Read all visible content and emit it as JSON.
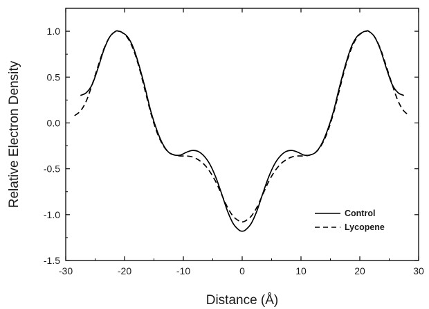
{
  "chart_data": {
    "type": "line",
    "title": "",
    "xlabel": "Distance (Å)",
    "ylabel": "Relative Electron Density",
    "xlim": [
      -30,
      30
    ],
    "ylim": [
      -1.5,
      1.25
    ],
    "x_ticks": [
      -30,
      -20,
      -10,
      0,
      10,
      20,
      30
    ],
    "x_tick_labels": [
      "-30",
      "-20",
      "-10",
      "0",
      "10",
      "20",
      "30"
    ],
    "y_ticks": [
      -1.5,
      -1.0,
      -0.5,
      0.0,
      0.5,
      1.0
    ],
    "y_tick_labels": [
      "-1.5",
      "-1.0",
      "-0.5",
      "0.0",
      "0.5",
      "1.0"
    ],
    "grid": false,
    "legend_position": "bottom-right",
    "series": [
      {
        "name": "Control",
        "style": "solid",
        "color": "#000000",
        "points": [
          [
            -27.5,
            0.3
          ],
          [
            -26.5,
            0.33
          ],
          [
            -25.5,
            0.42
          ],
          [
            -24.5,
            0.6
          ],
          [
            -23.5,
            0.8
          ],
          [
            -22.5,
            0.94
          ],
          [
            -21.5,
            1.0
          ],
          [
            -21,
            1.0
          ],
          [
            -20.5,
            0.99
          ],
          [
            -19.5,
            0.94
          ],
          [
            -18.5,
            0.82
          ],
          [
            -17.5,
            0.62
          ],
          [
            -16.5,
            0.38
          ],
          [
            -15.5,
            0.12
          ],
          [
            -14.5,
            -0.08
          ],
          [
            -13.5,
            -0.23
          ],
          [
            -12.5,
            -0.32
          ],
          [
            -11.5,
            -0.35
          ],
          [
            -10.5,
            -0.35
          ],
          [
            -9.5,
            -0.32
          ],
          [
            -8.5,
            -0.3
          ],
          [
            -7.5,
            -0.31
          ],
          [
            -6.5,
            -0.36
          ],
          [
            -5.5,
            -0.45
          ],
          [
            -4.5,
            -0.59
          ],
          [
            -3.5,
            -0.77
          ],
          [
            -2.5,
            -0.96
          ],
          [
            -1.5,
            -1.1
          ],
          [
            -0.5,
            -1.17
          ],
          [
            0,
            -1.18
          ],
          [
            0.5,
            -1.17
          ],
          [
            1.5,
            -1.1
          ],
          [
            2.5,
            -0.96
          ],
          [
            3.5,
            -0.77
          ],
          [
            4.5,
            -0.59
          ],
          [
            5.5,
            -0.45
          ],
          [
            6.5,
            -0.36
          ],
          [
            7.5,
            -0.31
          ],
          [
            8.5,
            -0.3
          ],
          [
            9.5,
            -0.32
          ],
          [
            10.5,
            -0.35
          ],
          [
            11.5,
            -0.35
          ],
          [
            12.5,
            -0.32
          ],
          [
            13.5,
            -0.23
          ],
          [
            14.5,
            -0.08
          ],
          [
            15.5,
            0.12
          ],
          [
            16.5,
            0.38
          ],
          [
            17.5,
            0.62
          ],
          [
            18.5,
            0.82
          ],
          [
            19.5,
            0.94
          ],
          [
            20.5,
            0.99
          ],
          [
            21,
            1.0
          ],
          [
            21.5,
            1.0
          ],
          [
            22.5,
            0.94
          ],
          [
            23.5,
            0.8
          ],
          [
            24.5,
            0.6
          ],
          [
            25.5,
            0.42
          ],
          [
            26.5,
            0.33
          ],
          [
            27.5,
            0.3
          ]
        ]
      },
      {
        "name": "Lycopene",
        "style": "dashed",
        "color": "#000000",
        "points": [
          [
            -28.5,
            0.08
          ],
          [
            -27.5,
            0.13
          ],
          [
            -26.5,
            0.24
          ],
          [
            -25.5,
            0.42
          ],
          [
            -24.5,
            0.62
          ],
          [
            -23.5,
            0.81
          ],
          [
            -22.5,
            0.94
          ],
          [
            -21.5,
            1.0
          ],
          [
            -21,
            1.0
          ],
          [
            -20.5,
            0.99
          ],
          [
            -19.5,
            0.93
          ],
          [
            -18.5,
            0.8
          ],
          [
            -17.5,
            0.6
          ],
          [
            -16.5,
            0.35
          ],
          [
            -15.5,
            0.1
          ],
          [
            -14.5,
            -0.1
          ],
          [
            -13.5,
            -0.24
          ],
          [
            -12.5,
            -0.32
          ],
          [
            -11.5,
            -0.35
          ],
          [
            -10.5,
            -0.36
          ],
          [
            -9.5,
            -0.36
          ],
          [
            -8.5,
            -0.37
          ],
          [
            -7.5,
            -0.4
          ],
          [
            -6.5,
            -0.45
          ],
          [
            -5.5,
            -0.53
          ],
          [
            -4.5,
            -0.64
          ],
          [
            -3.5,
            -0.78
          ],
          [
            -2.5,
            -0.92
          ],
          [
            -1.5,
            -1.02
          ],
          [
            -0.5,
            -1.07
          ],
          [
            0,
            -1.08
          ],
          [
            0.5,
            -1.07
          ],
          [
            1.5,
            -1.02
          ],
          [
            2.5,
            -0.92
          ],
          [
            3.5,
            -0.78
          ],
          [
            4.5,
            -0.64
          ],
          [
            5.5,
            -0.53
          ],
          [
            6.5,
            -0.45
          ],
          [
            7.5,
            -0.4
          ],
          [
            8.5,
            -0.37
          ],
          [
            9.5,
            -0.36
          ],
          [
            10.5,
            -0.36
          ],
          [
            11.5,
            -0.35
          ],
          [
            12.5,
            -0.32
          ],
          [
            13.5,
            -0.24
          ],
          [
            14.5,
            -0.1
          ],
          [
            15.5,
            0.1
          ],
          [
            16.5,
            0.35
          ],
          [
            17.5,
            0.6
          ],
          [
            18.5,
            0.8
          ],
          [
            19.5,
            0.93
          ],
          [
            20.5,
            0.99
          ],
          [
            21,
            1.0
          ],
          [
            21.5,
            1.0
          ],
          [
            22.5,
            0.94
          ],
          [
            23.5,
            0.81
          ],
          [
            24.5,
            0.62
          ],
          [
            25.5,
            0.42
          ],
          [
            26.5,
            0.24
          ],
          [
            27.5,
            0.13
          ],
          [
            28.5,
            0.08
          ]
        ]
      }
    ]
  }
}
